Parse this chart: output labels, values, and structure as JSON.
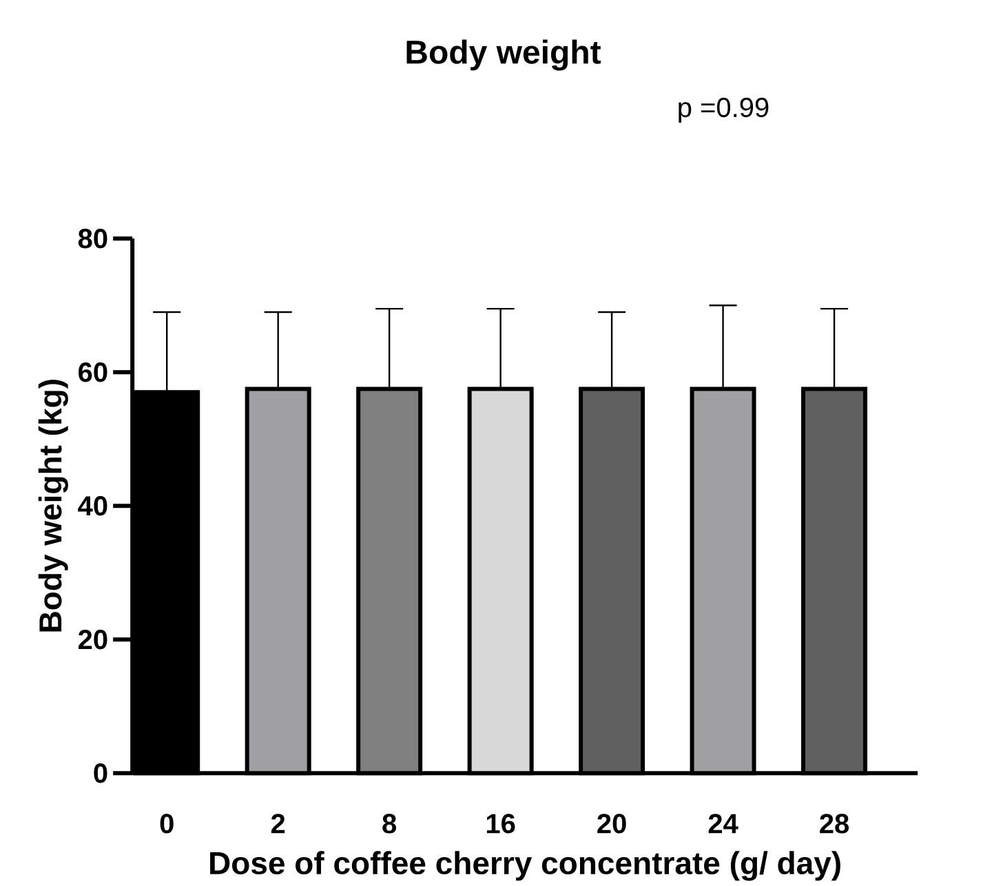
{
  "chart_data": {
    "type": "bar",
    "title": "Body weight",
    "xlabel": "Dose of coffee cherry concentrate (g/ day)",
    "ylabel": "Body weight (kg)",
    "categories": [
      "0",
      "2",
      "8",
      "16",
      "20",
      "24",
      "28"
    ],
    "values": [
      57,
      57.5,
      57.5,
      57.5,
      57.5,
      57.5,
      57.5
    ],
    "errors": [
      [
        57,
        69
      ],
      [
        57.5,
        69
      ],
      [
        57.5,
        69.5
      ],
      [
        57.5,
        69.5
      ],
      [
        57.5,
        69
      ],
      [
        57.5,
        70
      ],
      [
        57.5,
        69.5
      ]
    ],
    "colors": [
      "#000000",
      "#a0a0a4",
      "#808080",
      "#d8d8d8",
      "#606060",
      "#a0a0a4",
      "#606060"
    ],
    "ylim": [
      0,
      80
    ],
    "yticks": [
      0,
      20,
      40,
      60,
      80
    ],
    "annotations": [
      "p =0.99"
    ]
  }
}
